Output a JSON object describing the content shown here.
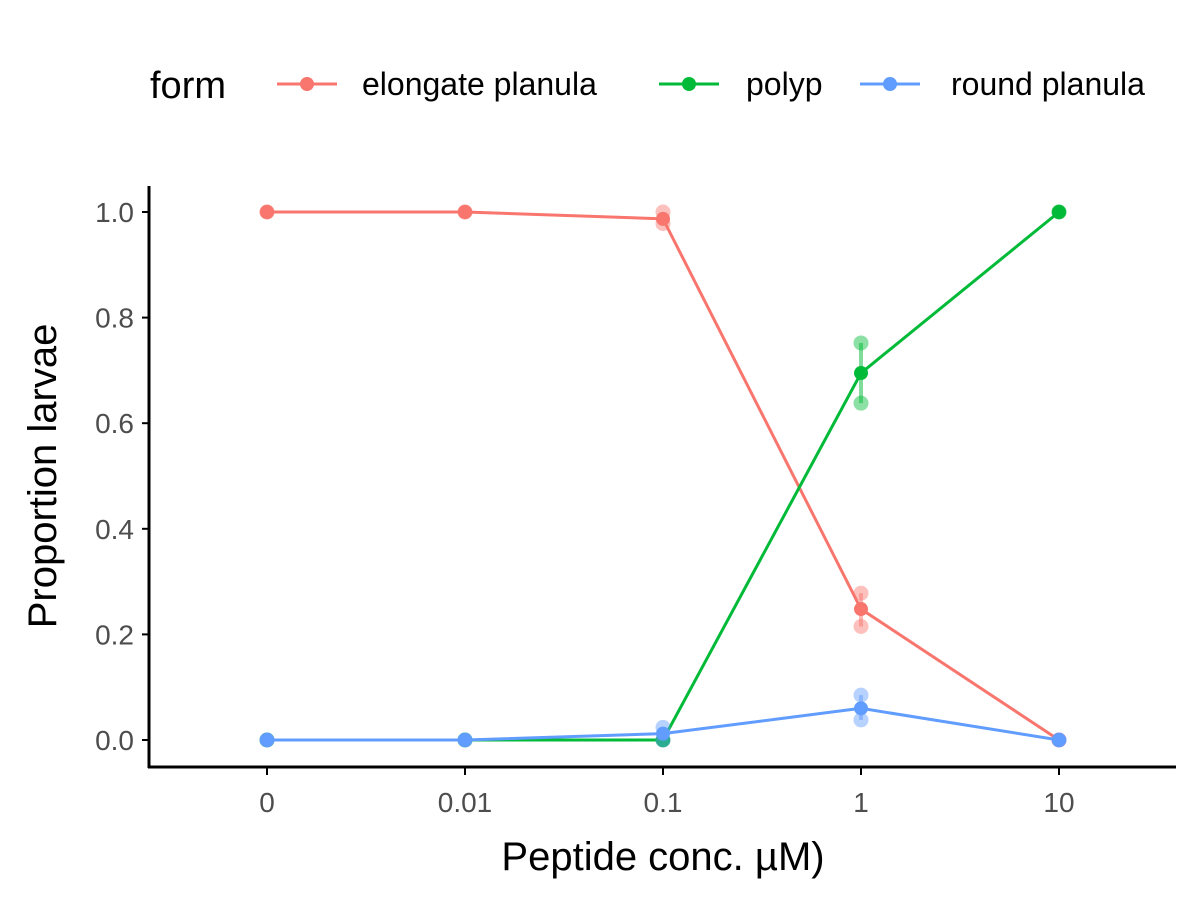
{
  "chart_data": {
    "type": "line",
    "xlabel": "Peptide conc. µM)",
    "ylabel": "Proportion larvae",
    "x": [
      "0",
      "0.01",
      "0.1",
      "1",
      "10"
    ],
    "ylim": [
      0,
      1
    ],
    "yticks": [
      "0.0",
      "0.2",
      "0.4",
      "0.6",
      "0.8",
      "1.0"
    ],
    "grid": false,
    "legend": {
      "title": "form",
      "placement": "top",
      "entries": [
        "elongate planula",
        "polyp",
        "round planula"
      ]
    },
    "series": [
      {
        "name": "elongate planula",
        "color": "#F8766D",
        "mean": [
          1.0,
          1.0,
          0.987,
          0.248,
          0.0
        ],
        "replicates": [
          [
            1.0,
            1.0
          ],
          [
            1.0,
            1.0
          ],
          [
            1.0,
            0.978
          ],
          [
            0.278,
            0.215
          ],
          [
            0.0,
            0.0
          ]
        ]
      },
      {
        "name": "polyp",
        "color": "#00BA38",
        "mean": [
          0.0,
          0.0,
          0.0,
          0.695,
          1.0
        ],
        "replicates": [
          [
            0.0,
            0.0
          ],
          [
            0.0,
            0.0
          ],
          [
            0.0,
            0.0
          ],
          [
            0.752,
            0.638
          ],
          [
            1.0,
            1.0
          ]
        ]
      },
      {
        "name": "round planula",
        "color": "#619CFF",
        "mean": [
          0.0,
          0.0,
          0.012,
          0.06,
          0.0
        ],
        "replicates": [
          [
            0.0,
            0.0
          ],
          [
            0.0,
            0.0
          ],
          [
            0.024,
            0.0
          ],
          [
            0.085,
            0.038
          ],
          [
            0.0,
            0.0
          ]
        ]
      }
    ]
  }
}
